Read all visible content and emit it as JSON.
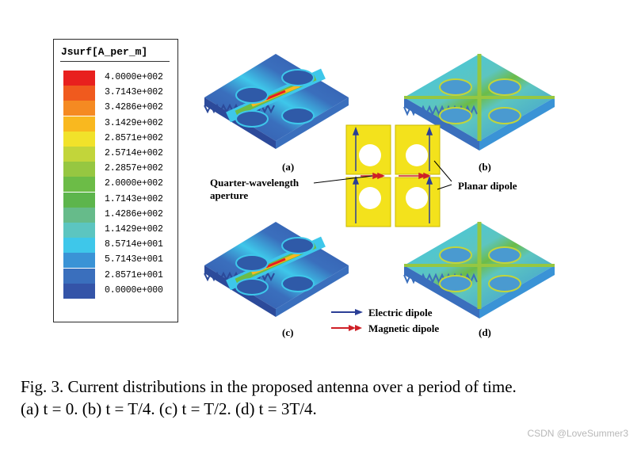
{
  "legend": {
    "title": "Jsurf[A_per_m]",
    "levels": [
      {
        "value": "4.0000e+002",
        "color": "#e8201e"
      },
      {
        "value": "3.7143e+002",
        "color": "#f05a1e"
      },
      {
        "value": "3.4286e+002",
        "color": "#f58a22"
      },
      {
        "value": "3.1429e+002",
        "color": "#f9b81f"
      },
      {
        "value": "2.8571e+002",
        "color": "#f1e22a"
      },
      {
        "value": "2.5714e+002",
        "color": "#c2d53a"
      },
      {
        "value": "2.2857e+002",
        "color": "#96c741"
      },
      {
        "value": "2.0000e+002",
        "color": "#6cbc47"
      },
      {
        "value": "1.7143e+002",
        "color": "#5db54c"
      },
      {
        "value": "1.4286e+002",
        "color": "#66bb8a"
      },
      {
        "value": "1.1429e+002",
        "color": "#5cc5c0"
      },
      {
        "value": "8.5714e+001",
        "color": "#3ec7ea"
      },
      {
        "value": "5.7143e+001",
        "color": "#3a93d6"
      },
      {
        "value": "2.8571e+001",
        "color": "#3a6fbd"
      },
      {
        "value": "0.0000e+000",
        "color": "#3454a8"
      }
    ]
  },
  "panels": {
    "a": "(a)",
    "b": "(b)",
    "c": "(c)",
    "d": "(d)"
  },
  "annotations": {
    "aperture": "Quarter-wavelength aperture",
    "planar_dipole": "Planar dipole",
    "electric_dipole": "Electric dipole",
    "magnetic_dipole": "Magnetic dipole"
  },
  "colors": {
    "electric": "#2b3f96",
    "magnetic": "#cf2027",
    "antenna_yellow": "#f3e21c"
  },
  "caption": {
    "line1": "Fig. 3.  Current distributions in the proposed antenna over a period of time.",
    "line2": "(a) t = 0. (b) t = T/4. (c) t = T/2. (d) t = 3T/4."
  },
  "watermark": "CSDN @LoveSummer3"
}
